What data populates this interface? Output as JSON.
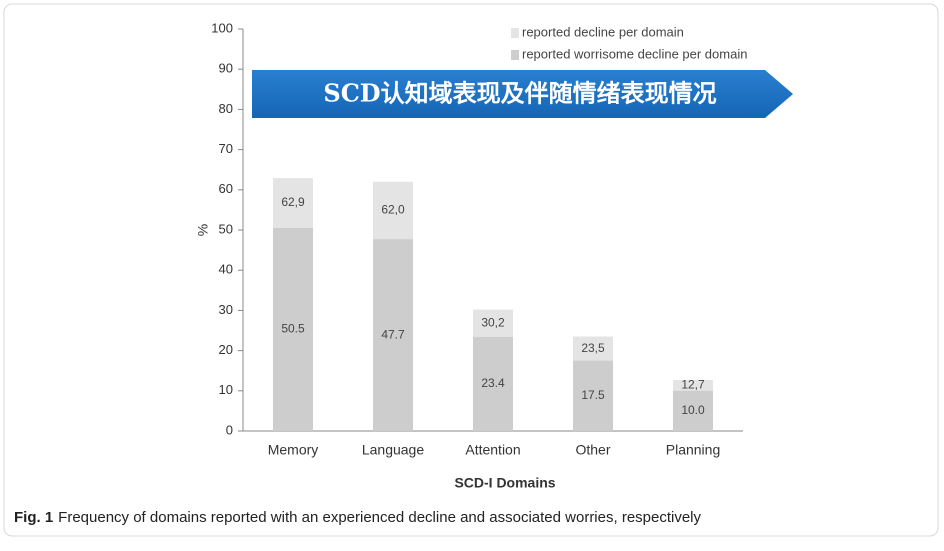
{
  "chart_data": {
    "type": "bar",
    "annotation": "SCD认知域表现及伴随情绪表现情况",
    "y_label": "%",
    "x_label": "SCD-I Domains",
    "categories": [
      "Memory",
      "Language",
      "Attention",
      "Other",
      "Planning"
    ],
    "series": [
      {
        "name": "reported decline per domain",
        "color": "#e4e4e4",
        "values": [
          62.9,
          62.0,
          30.2,
          23.5,
          12.7
        ],
        "value_labels": [
          "62,9",
          "62,0",
          "30,2",
          "23,5",
          "12,7"
        ]
      },
      {
        "name": "reported worrisome decline per domain",
        "color": "#cdcdcd",
        "values": [
          50.5,
          47.7,
          23.4,
          17.5,
          10.0
        ],
        "value_labels": [
          "50.5",
          "47.7",
          "23.4",
          "17.5",
          "10.0"
        ]
      }
    ],
    "ylim": [
      0,
      100
    ],
    "yticks": [
      0,
      10,
      20,
      30,
      40,
      50,
      60,
      70,
      80,
      90,
      100
    ],
    "caption_label": "Fig. 1",
    "caption": "Frequency of domains reported with an experienced decline and associated worries, respectively"
  }
}
